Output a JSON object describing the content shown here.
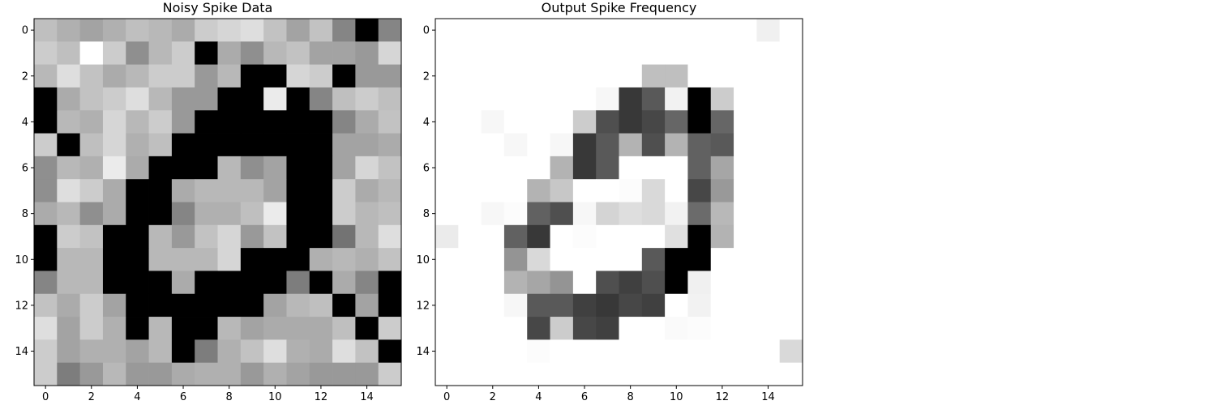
{
  "chart_data": [
    {
      "type": "heatmap",
      "title": "Noisy Spike Data",
      "colormap": "gray_r",
      "vmin": 0,
      "vmax": 1,
      "xticks": [
        0,
        2,
        4,
        6,
        8,
        10,
        12,
        14
      ],
      "yticks": [
        0,
        2,
        4,
        6,
        8,
        10,
        12,
        14
      ],
      "values": [
        [
          0.25,
          0.31,
          0.36,
          0.31,
          0.25,
          0.28,
          0.33,
          0.2,
          0.16,
          0.13,
          0.24,
          0.36,
          0.24,
          0.48,
          1.0,
          0.48
        ],
        [
          0.2,
          0.25,
          0.0,
          0.2,
          0.44,
          0.28,
          0.2,
          1.0,
          0.33,
          0.44,
          0.28,
          0.24,
          0.36,
          0.36,
          0.4,
          0.16
        ],
        [
          0.28,
          0.13,
          0.24,
          0.33,
          0.28,
          0.2,
          0.2,
          0.4,
          0.28,
          1.0,
          1.0,
          0.16,
          0.2,
          1.0,
          0.4,
          0.4
        ],
        [
          1.0,
          0.33,
          0.24,
          0.2,
          0.13,
          0.28,
          0.4,
          0.4,
          1.0,
          1.0,
          0.08,
          1.0,
          0.48,
          0.25,
          0.2,
          0.25
        ],
        [
          1.0,
          0.28,
          0.31,
          0.16,
          0.28,
          0.2,
          0.4,
          1.0,
          1.0,
          1.0,
          1.0,
          1.0,
          1.0,
          0.48,
          0.33,
          0.24
        ],
        [
          0.2,
          1.0,
          0.25,
          0.16,
          0.31,
          0.25,
          1.0,
          1.0,
          1.0,
          1.0,
          1.0,
          1.0,
          1.0,
          0.36,
          0.36,
          0.33
        ],
        [
          0.44,
          0.28,
          0.31,
          0.08,
          0.33,
          1.0,
          1.0,
          1.0,
          0.28,
          0.44,
          0.36,
          1.0,
          1.0,
          0.36,
          0.16,
          0.24
        ],
        [
          0.44,
          0.13,
          0.2,
          0.33,
          1.0,
          1.0,
          0.33,
          0.28,
          0.28,
          0.28,
          0.36,
          1.0,
          1.0,
          0.2,
          0.33,
          0.28
        ],
        [
          0.33,
          0.28,
          0.44,
          0.33,
          1.0,
          1.0,
          0.48,
          0.31,
          0.31,
          0.25,
          0.08,
          1.0,
          1.0,
          0.2,
          0.28,
          0.25
        ],
        [
          1.0,
          0.2,
          0.24,
          1.0,
          1.0,
          0.28,
          0.4,
          0.24,
          0.16,
          0.4,
          0.24,
          1.0,
          1.0,
          0.55,
          0.28,
          0.13
        ],
        [
          1.0,
          0.28,
          0.28,
          1.0,
          1.0,
          0.28,
          0.28,
          0.28,
          0.16,
          1.0,
          1.0,
          1.0,
          0.31,
          0.28,
          0.31,
          0.24
        ],
        [
          0.48,
          0.28,
          0.28,
          1.0,
          1.0,
          1.0,
          0.33,
          1.0,
          1.0,
          1.0,
          1.0,
          0.51,
          1.0,
          0.33,
          0.48,
          1.0
        ],
        [
          0.24,
          0.33,
          0.2,
          0.36,
          1.0,
          1.0,
          1.0,
          1.0,
          1.0,
          1.0,
          0.36,
          0.28,
          0.25,
          1.0,
          0.36,
          1.0
        ],
        [
          0.13,
          0.36,
          0.2,
          0.31,
          1.0,
          0.28,
          1.0,
          1.0,
          0.28,
          0.36,
          0.33,
          0.33,
          0.33,
          0.25,
          1.0,
          0.2
        ],
        [
          0.2,
          0.36,
          0.31,
          0.31,
          0.36,
          0.28,
          1.0,
          0.51,
          0.31,
          0.24,
          0.13,
          0.31,
          0.33,
          0.13,
          0.24,
          1.0
        ],
        [
          0.2,
          0.51,
          0.4,
          0.28,
          0.4,
          0.4,
          0.33,
          0.31,
          0.31,
          0.4,
          0.31,
          0.36,
          0.4,
          0.4,
          0.4,
          0.2
        ]
      ]
    },
    {
      "type": "heatmap",
      "title": "Output Spike Frequency",
      "colormap": "gray_r",
      "vmin": 0,
      "vmax": 1,
      "xticks": [
        0,
        2,
        4,
        6,
        8,
        10,
        12,
        14
      ],
      "yticks": [
        0,
        2,
        4,
        6,
        8,
        10,
        12,
        14
      ],
      "values": [
        [
          0,
          0,
          0,
          0,
          0,
          0,
          0,
          0,
          0,
          0,
          0,
          0,
          0,
          0,
          0.06,
          0
        ],
        [
          0,
          0,
          0,
          0,
          0,
          0,
          0,
          0,
          0,
          0,
          0,
          0,
          0,
          0,
          0,
          0
        ],
        [
          0,
          0,
          0,
          0,
          0,
          0,
          0,
          0,
          0,
          0.25,
          0.25,
          0,
          0,
          0,
          0,
          0
        ],
        [
          0,
          0,
          0,
          0,
          0,
          0,
          0,
          0.03,
          0.78,
          0.65,
          0.05,
          1.0,
          0.2,
          0,
          0,
          0
        ],
        [
          0,
          0,
          0.03,
          0,
          0,
          0,
          0.2,
          0.69,
          0.78,
          0.72,
          0.6,
          1.0,
          0.6,
          0,
          0,
          0
        ],
        [
          0,
          0,
          0,
          0.03,
          0,
          0.03,
          0.78,
          0.65,
          0.3,
          0.69,
          0.3,
          0.62,
          0.65,
          0,
          0,
          0
        ],
        [
          0,
          0,
          0,
          0,
          0,
          0.3,
          0.78,
          0.65,
          0,
          0,
          0,
          0.62,
          0.35,
          0,
          0,
          0
        ],
        [
          0,
          0,
          0,
          0,
          0.3,
          0.22,
          0,
          0,
          0.01,
          0.15,
          0,
          0.72,
          0.4,
          0,
          0,
          0
        ],
        [
          0,
          0,
          0.03,
          0.01,
          0.62,
          0.69,
          0.03,
          0.17,
          0.13,
          0.15,
          0.05,
          0.58,
          0.28,
          0,
          0,
          0
        ],
        [
          0.08,
          0,
          0,
          0.62,
          0.78,
          0,
          0.01,
          0,
          0,
          0,
          0.12,
          1.0,
          0.3,
          0,
          0,
          0
        ],
        [
          0,
          0,
          0,
          0.42,
          0.15,
          0,
          0,
          0,
          0,
          0.65,
          1.0,
          1.0,
          0,
          0,
          0,
          0
        ],
        [
          0,
          0,
          0,
          0.3,
          0.35,
          0.42,
          0,
          0.69,
          0.75,
          0.69,
          1.0,
          0.06,
          0,
          0,
          0,
          0
        ],
        [
          0,
          0,
          0,
          0.03,
          0.65,
          0.65,
          0.75,
          0.78,
          0.72,
          0.75,
          0,
          0.05,
          0,
          0,
          0,
          0
        ],
        [
          0,
          0,
          0,
          0,
          0.72,
          0.2,
          0.72,
          0.75,
          0,
          0,
          0.02,
          0.01,
          0,
          0,
          0,
          0
        ],
        [
          0,
          0,
          0,
          0,
          0.01,
          0,
          0,
          0,
          0,
          0,
          0,
          0,
          0,
          0,
          0,
          0.15
        ],
        [
          0,
          0,
          0,
          0,
          0,
          0,
          0,
          0,
          0,
          0,
          0,
          0,
          0,
          0,
          0,
          0
        ]
      ]
    }
  ]
}
